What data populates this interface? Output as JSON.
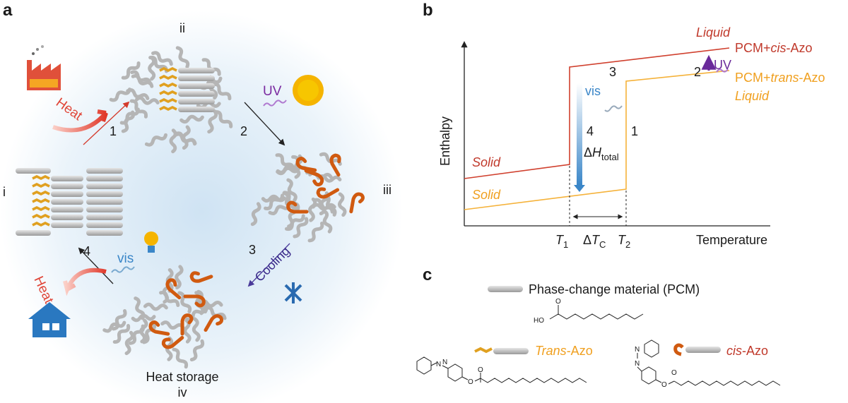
{
  "panel_a": {
    "label": "a",
    "state_i": "i",
    "state_ii": "ii",
    "state_iii": "iii",
    "state_iv": "iv",
    "step_1": "1",
    "step_2": "2",
    "step_3": "3",
    "step_4": "4",
    "heat_in": "Heat",
    "heat_out": "Heat",
    "uv": "UV",
    "vis": "vis",
    "cooling": "Cooling",
    "caption": "Heat storage"
  },
  "panel_b": {
    "label": "b",
    "y_axis": "Enthalpy",
    "x_axis": "Temperature",
    "cis_curve": {
      "phase_high": "Liquid",
      "phase_low": "Solid",
      "name": [
        "PCM+",
        "cis",
        "-Azo"
      ]
    },
    "trans_curve": {
      "phase_high": "Liquid",
      "phase_low": "Solid",
      "name": [
        "PCM+",
        "trans",
        "-Azo"
      ]
    },
    "step_1": "1",
    "step_2": "2",
    "step_3": "3",
    "step_4": "4",
    "uv": "UV",
    "vis": "vis",
    "delta_h": [
      "Δ",
      "H",
      "total"
    ],
    "t1": [
      "T",
      "1"
    ],
    "delta_tc": [
      "Δ",
      "T",
      "C"
    ],
    "t2": [
      "T",
      "2"
    ]
  },
  "panel_c": {
    "label": "c",
    "pcm": "Phase-change material (PCM)",
    "trans": [
      "Trans",
      "-Azo"
    ],
    "cis": [
      "cis",
      "-Azo"
    ],
    "acid_atoms": [
      "HO",
      "O"
    ],
    "trans_atoms": [
      "N",
      "N",
      "O",
      "O"
    ],
    "cis_atoms": [
      "N",
      "N",
      "O",
      "O"
    ]
  }
}
